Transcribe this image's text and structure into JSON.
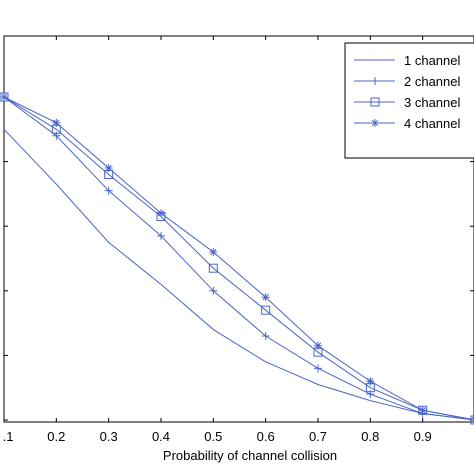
{
  "chart_data": {
    "type": "line",
    "xlabel": "Probability of channel collision",
    "ylabel": "",
    "title": "",
    "xlim": [
      0.1,
      1.0
    ],
    "ylim": [
      0,
      1
    ],
    "x_ticks": [
      ".1",
      "0.2",
      "0.3",
      "0.4",
      "0.5",
      "0.6",
      "0.7",
      "0.8",
      "0.9"
    ],
    "x": [
      0.1,
      0.2,
      0.3,
      0.4,
      0.5,
      0.6,
      0.7,
      0.8,
      0.9,
      1.0
    ],
    "series": [
      {
        "name": "1 channel",
        "marker": "none",
        "values": [
          0.9,
          0.73,
          0.55,
          0.42,
          0.28,
          0.18,
          0.11,
          0.06,
          0.02,
          0.0
        ]
      },
      {
        "name": "2 channel",
        "marker": "plus",
        "values": [
          1.0,
          0.88,
          0.71,
          0.57,
          0.4,
          0.26,
          0.16,
          0.08,
          0.02,
          0.0
        ]
      },
      {
        "name": "3 channel",
        "marker": "square",
        "values": [
          1.0,
          0.9,
          0.76,
          0.63,
          0.47,
          0.34,
          0.21,
          0.1,
          0.03,
          0.0
        ]
      },
      {
        "name": "4 channel",
        "marker": "star",
        "values": [
          1.0,
          0.92,
          0.78,
          0.64,
          0.52,
          0.38,
          0.23,
          0.12,
          0.03,
          0.0
        ]
      }
    ],
    "grid": false,
    "legend_position": "top-right",
    "line_color": "#4a64c8"
  }
}
